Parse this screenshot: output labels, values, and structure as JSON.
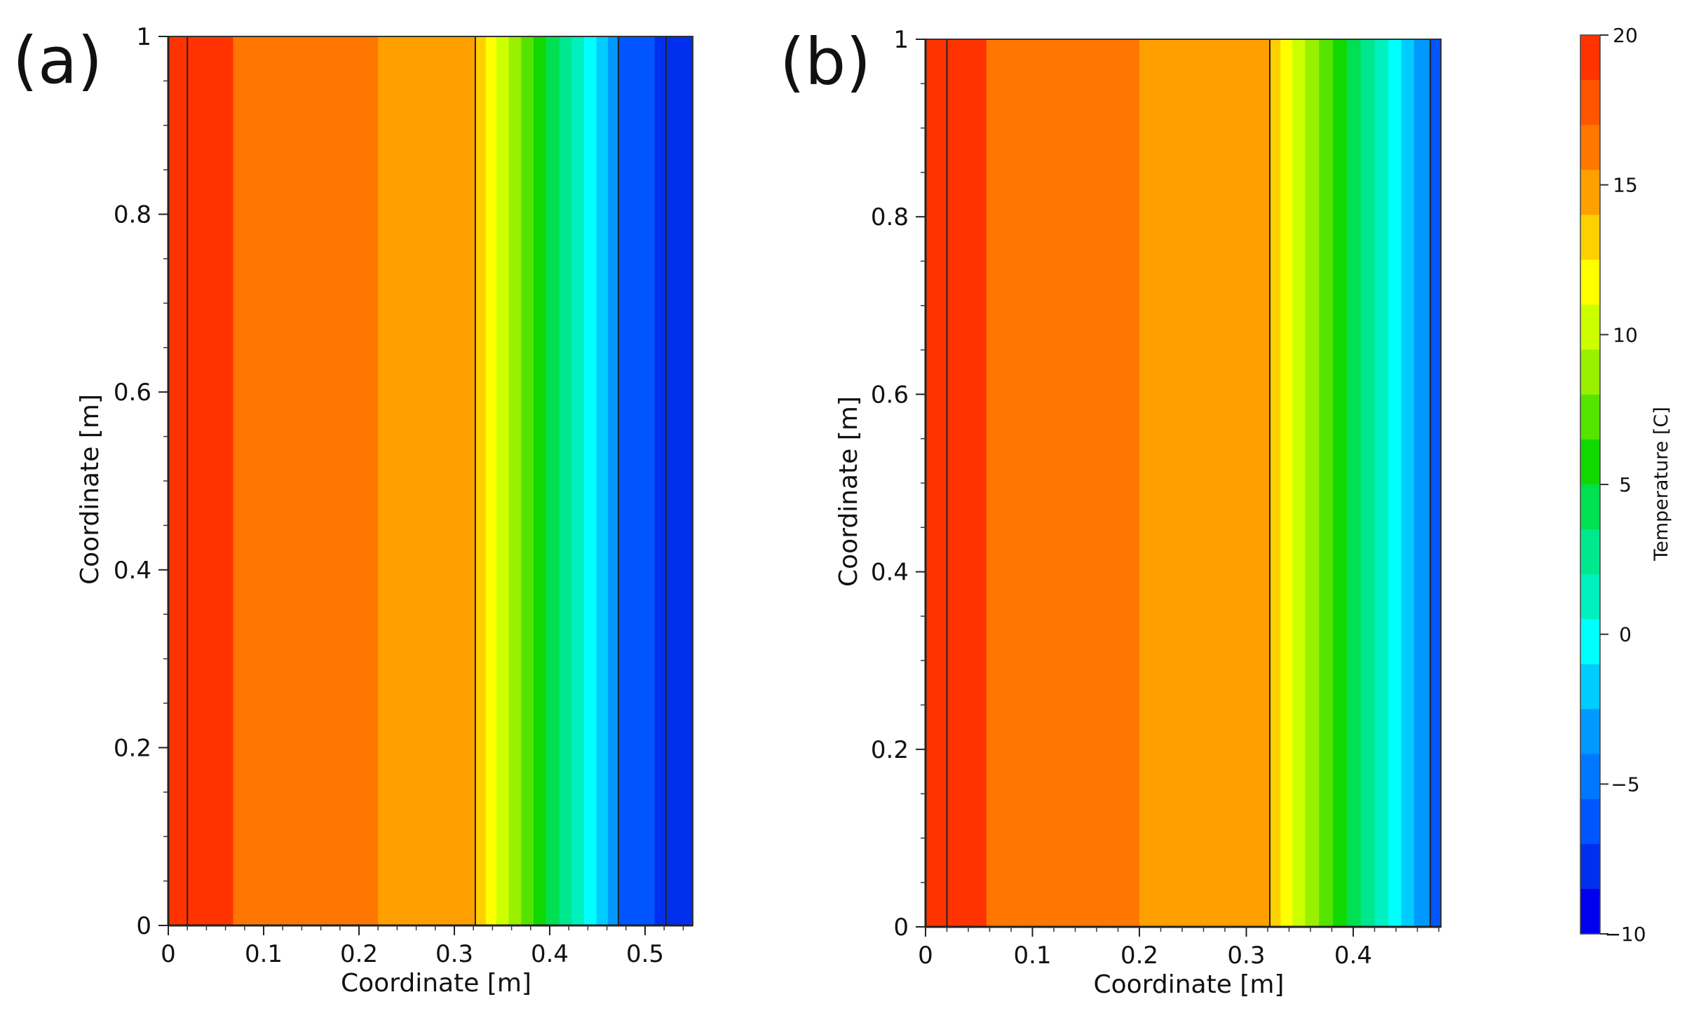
{
  "chart_data": [
    {
      "type": "heatmap",
      "panel_label": "(a)",
      "xlabel": "Coordinate [m]",
      "ylabel": "Coordinate [m]",
      "xlim": [
        0,
        0.55
      ],
      "ylim": [
        0,
        1
      ],
      "xticks": [
        0,
        0.1,
        0.2,
        0.3,
        0.4,
        0.5
      ],
      "xtick_labels": [
        "0",
        "0.1",
        "0.2",
        "0.3",
        "0.4",
        "0.5"
      ],
      "yticks": [
        0,
        0.2,
        0.4,
        0.6,
        0.8,
        1
      ],
      "ytick_labels": [
        "0",
        "0.2",
        "0.4",
        "0.6",
        "0.8",
        "1"
      ],
      "layer_boundaries_x": [
        0.02,
        0.322,
        0.472,
        0.522
      ],
      "temperature_bands": [
        {
          "x0": 0.0,
          "x1": 0.068,
          "level": 18.5
        },
        {
          "x0": 0.068,
          "x1": 0.22,
          "level": 16.75
        },
        {
          "x0": 0.22,
          "x1": 0.322,
          "level": 15.25
        },
        {
          "x0": 0.322,
          "x1": 0.333,
          "level": 13.75
        },
        {
          "x0": 0.333,
          "x1": 0.344,
          "level": 12.25
        },
        {
          "x0": 0.344,
          "x1": 0.357,
          "level": 10.75
        },
        {
          "x0": 0.357,
          "x1": 0.37,
          "level": 9.25
        },
        {
          "x0": 0.37,
          "x1": 0.383,
          "level": 7.75
        },
        {
          "x0": 0.383,
          "x1": 0.396,
          "level": 6.25
        },
        {
          "x0": 0.396,
          "x1": 0.41,
          "level": 4.75
        },
        {
          "x0": 0.41,
          "x1": 0.423,
          "level": 3.25
        },
        {
          "x0": 0.423,
          "x1": 0.436,
          "level": 1.75
        },
        {
          "x0": 0.436,
          "x1": 0.449,
          "level": 0.25
        },
        {
          "x0": 0.449,
          "x1": 0.461,
          "level": -1.25
        },
        {
          "x0": 0.461,
          "x1": 0.472,
          "level": -2.75
        },
        {
          "x0": 0.472,
          "x1": 0.51,
          "level": -5.75
        },
        {
          "x0": 0.51,
          "x1": 0.55,
          "level": -7.25
        }
      ]
    },
    {
      "type": "heatmap",
      "panel_label": "(b)",
      "xlabel": "Coordinate [m]",
      "ylabel": "Coordinate [m]",
      "xlim": [
        0,
        0.482
      ],
      "ylim": [
        0,
        1
      ],
      "xticks": [
        0,
        0.1,
        0.2,
        0.3,
        0.4
      ],
      "xtick_labels": [
        "0",
        "0.1",
        "0.2",
        "0.3",
        "0.4"
      ],
      "yticks": [
        0,
        0.2,
        0.4,
        0.6,
        0.8,
        1
      ],
      "ytick_labels": [
        "0",
        "0.2",
        "0.4",
        "0.6",
        "0.8",
        "1"
      ],
      "layer_boundaries_x": [
        0.02,
        0.322,
        0.472
      ],
      "temperature_bands": [
        {
          "x0": 0.0,
          "x1": 0.057,
          "level": 18.5
        },
        {
          "x0": 0.057,
          "x1": 0.2,
          "level": 16.75
        },
        {
          "x0": 0.2,
          "x1": 0.322,
          "level": 15.25
        },
        {
          "x0": 0.322,
          "x1": 0.332,
          "level": 13.75
        },
        {
          "x0": 0.332,
          "x1": 0.343,
          "level": 12.25
        },
        {
          "x0": 0.343,
          "x1": 0.355,
          "level": 10.75
        },
        {
          "x0": 0.355,
          "x1": 0.368,
          "level": 9.25
        },
        {
          "x0": 0.368,
          "x1": 0.381,
          "level": 7.75
        },
        {
          "x0": 0.381,
          "x1": 0.394,
          "level": 6.25
        },
        {
          "x0": 0.394,
          "x1": 0.407,
          "level": 4.75
        },
        {
          "x0": 0.407,
          "x1": 0.42,
          "level": 3.25
        },
        {
          "x0": 0.42,
          "x1": 0.433,
          "level": 1.75
        },
        {
          "x0": 0.433,
          "x1": 0.445,
          "level": 0.25
        },
        {
          "x0": 0.445,
          "x1": 0.457,
          "level": -1.25
        },
        {
          "x0": 0.457,
          "x1": 0.472,
          "level": -2.75
        },
        {
          "x0": 0.472,
          "x1": 0.482,
          "level": -5.75
        }
      ]
    }
  ],
  "colorbar": {
    "title": "Temperature [C]",
    "min": -10,
    "max": 20,
    "ticks": [
      20,
      15,
      10,
      5,
      0,
      -5,
      -10
    ],
    "tick_labels": [
      "20",
      "15",
      "10",
      "5",
      "0",
      "−5",
      "−10"
    ],
    "levels": [
      {
        "from": 18.5,
        "to": 20,
        "color": "#ff3300"
      },
      {
        "from": 17,
        "to": 18.5,
        "color": "#ff5500"
      },
      {
        "from": 15.5,
        "to": 17,
        "color": "#ff7700"
      },
      {
        "from": 14,
        "to": 15.5,
        "color": "#ffa000"
      },
      {
        "from": 12.5,
        "to": 14,
        "color": "#ffd000"
      },
      {
        "from": 11,
        "to": 12.5,
        "color": "#ffff00"
      },
      {
        "from": 9.5,
        "to": 11,
        "color": "#ccff00"
      },
      {
        "from": 8,
        "to": 9.5,
        "color": "#99f000"
      },
      {
        "from": 6.5,
        "to": 8,
        "color": "#55e400"
      },
      {
        "from": 5,
        "to": 6.5,
        "color": "#11d800"
      },
      {
        "from": 3.5,
        "to": 5,
        "color": "#00e050"
      },
      {
        "from": 2,
        "to": 3.5,
        "color": "#00e88e"
      },
      {
        "from": 0.5,
        "to": 2,
        "color": "#00f0c0"
      },
      {
        "from": -1,
        "to": 0.5,
        "color": "#00ffff"
      },
      {
        "from": -2.5,
        "to": -1,
        "color": "#00ccff"
      },
      {
        "from": -4,
        "to": -2.5,
        "color": "#0099ff"
      },
      {
        "from": -5.5,
        "to": -4,
        "color": "#0077ff"
      },
      {
        "from": -7,
        "to": -5.5,
        "color": "#0055ff"
      },
      {
        "from": -8.5,
        "to": -7,
        "color": "#0030ee"
      },
      {
        "from": -10,
        "to": -8.5,
        "color": "#0000ee"
      }
    ]
  }
}
